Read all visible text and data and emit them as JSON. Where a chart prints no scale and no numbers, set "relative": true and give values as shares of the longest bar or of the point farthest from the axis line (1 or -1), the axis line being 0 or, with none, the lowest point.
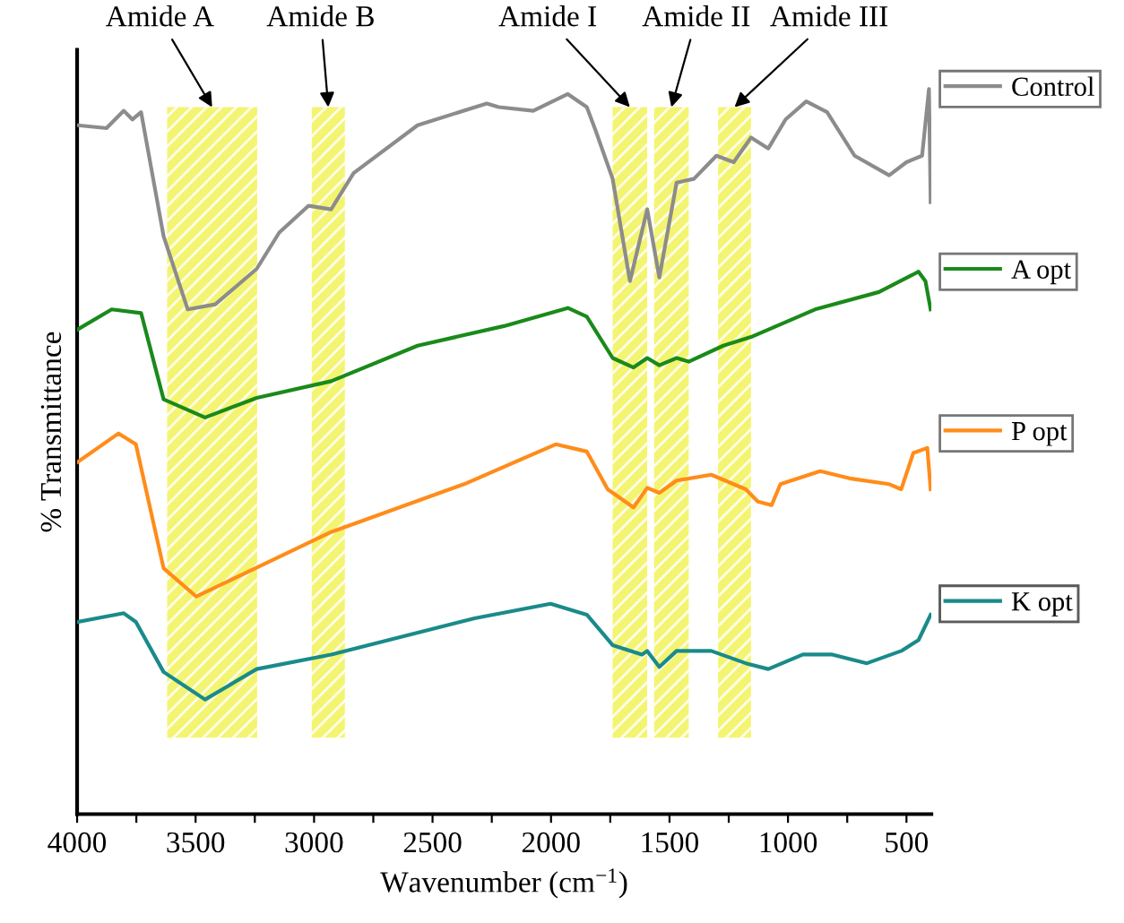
{
  "chart_data": {
    "type": "line",
    "relative": true,
    "xlabel": "Wavenumber (cm$^{−1}$)",
    "ylabel": "% Transmittance",
    "xlim": [
      4000,
      395
    ],
    "xticks": [
      4000,
      {
        "value": 3750,
        "label": null
      },
      3500,
      {
        "value": 3250,
        "label": null
      },
      3000,
      {
        "value": 2750,
        "label": null
      },
      2500,
      {
        "value": 2250,
        "label": null
      },
      2000,
      {
        "value": 1750,
        "label": null
      },
      1500,
      {
        "value": 1250,
        "label": null
      },
      1000,
      {
        "value": 750,
        "label": null
      },
      500
    ],
    "tick_labels": "x",
    "grid": false,
    "legend": "right",
    "marker": "none",
    "line_style": "solid",
    "bands": [
      {
        "axis": "x",
        "from": 3620,
        "to": 3240,
        "label": "Amide A",
        "color": "#f2f25a"
      },
      {
        "axis": "x",
        "from": 3010,
        "to": 2870,
        "label": "Amide B",
        "color": "#f2f25a"
      },
      {
        "axis": "x",
        "from": 1740,
        "to": 1594,
        "label": "Amide I",
        "color": "#f2f25a"
      },
      {
        "axis": "x",
        "from": 1565,
        "to": 1419,
        "label": "Amide II",
        "color": "#f2f25a"
      },
      {
        "axis": "x",
        "from": 1295,
        "to": 1156,
        "label": "Amide III",
        "color": "#f2f25a"
      }
    ],
    "series": [
      {
        "name": "Control",
        "color": "#8c8c8c",
        "x": [
          4000,
          3876,
          3803,
          3767,
          3730,
          3635,
          3533,
          3417,
          3242,
          3147,
          3023,
          2928,
          2833,
          2563,
          2271,
          2221,
          2075,
          1929,
          1907,
          1849,
          1812,
          1740,
          1667,
          1594,
          1543,
          1470,
          1397,
          1302,
          1229,
          1156,
          1083,
          1010,
          923,
          835,
          719,
          573,
          500,
          434,
          405,
          398
        ],
        "values": [
          0.95,
          0.946,
          0.97,
          0.958,
          0.968,
          0.797,
          0.696,
          0.703,
          0.752,
          0.802,
          0.839,
          0.834,
          0.884,
          0.95,
          0.98,
          0.975,
          0.97,
          0.993,
          0.988,
          0.975,
          0.943,
          0.876,
          0.735,
          0.834,
          0.74,
          0.871,
          0.876,
          0.908,
          0.899,
          0.933,
          0.918,
          0.958,
          0.983,
          0.968,
          0.908,
          0.881,
          0.899,
          0.908,
          1.0,
          0.844
        ]
      },
      {
        "name": "A opt",
        "color": "#1a8a1a",
        "x": [
          4000,
          3854,
          3730,
          3635,
          3460,
          3242,
          2928,
          2563,
          2199,
          1929,
          1849,
          1740,
          1652,
          1594,
          1543,
          1470,
          1419,
          1273,
          1156,
          886,
          616,
          449,
          420,
          398
        ],
        "values": [
          0.668,
          0.696,
          0.691,
          0.572,
          0.547,
          0.574,
          0.597,
          0.646,
          0.673,
          0.698,
          0.686,
          0.629,
          0.616,
          0.629,
          0.619,
          0.629,
          0.624,
          0.646,
          0.658,
          0.696,
          0.72,
          0.748,
          0.735,
          0.696
        ]
      },
      {
        "name": "P opt",
        "color": "#ff8c1a",
        "x": [
          4000,
          3825,
          3752,
          3635,
          3497,
          3293,
          2928,
          2367,
          1980,
          1849,
          1761,
          1652,
          1594,
          1543,
          1470,
          1324,
          1178,
          1127,
          1069,
          1032,
          864,
          740,
          573,
          522,
          471,
          412,
          398
        ],
        "values": [
          0.485,
          0.525,
          0.51,
          0.339,
          0.3,
          0.332,
          0.389,
          0.455,
          0.51,
          0.5,
          0.448,
          0.423,
          0.45,
          0.443,
          0.46,
          0.468,
          0.448,
          0.431,
          0.426,
          0.455,
          0.473,
          0.463,
          0.455,
          0.448,
          0.498,
          0.505,
          0.448
        ]
      },
      {
        "name": "K opt",
        "color": "#1a8a8a",
        "x": [
          4000,
          3803,
          3752,
          3635,
          3460,
          3242,
          2928,
          2323,
          2002,
          1849,
          1740,
          1616,
          1594,
          1543,
          1470,
          1324,
          1178,
          1083,
          937,
          813,
          667,
          522,
          449,
          398
        ],
        "values": [
          0.265,
          0.277,
          0.265,
          0.196,
          0.158,
          0.2,
          0.22,
          0.27,
          0.29,
          0.275,
          0.233,
          0.22,
          0.225,
          0.203,
          0.225,
          0.225,
          0.208,
          0.2,
          0.22,
          0.22,
          0.208,
          0.225,
          0.24,
          0.275
        ]
      }
    ]
  }
}
